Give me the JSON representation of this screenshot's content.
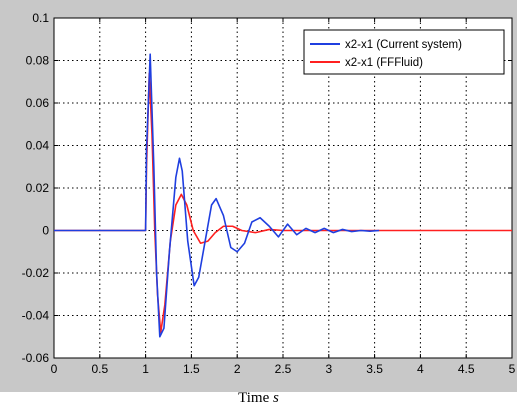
{
  "chart_data": {
    "type": "line",
    "xlabel": "Time",
    "xlabel_unit": "s",
    "xlim": [
      0,
      5
    ],
    "ylim": [
      -0.06,
      0.1
    ],
    "grid": true,
    "legend_position": "top-right",
    "x_ticks": [
      "0",
      "0.5",
      "1",
      "1.5",
      "2",
      "2.5",
      "3",
      "3.5",
      "4",
      "4.5",
      "5"
    ],
    "y_ticks": [
      "-0.06",
      "-0.04",
      "-0.02",
      "0",
      "0.02",
      "0.04",
      "0.06",
      "0.08",
      "0.1"
    ],
    "colors": {
      "current": "#1f3fe0",
      "ffluid": "#ff2020",
      "frame": "#c8c8c8"
    },
    "series": [
      {
        "name": "x2-x1 (Current system)",
        "color": "#1f3fe0",
        "x": [
          0,
          1.0,
          1.01,
          1.05,
          1.09,
          1.12,
          1.155,
          1.2,
          1.26,
          1.33,
          1.37,
          1.4,
          1.46,
          1.53,
          1.58,
          1.65,
          1.72,
          1.77,
          1.85,
          1.93,
          2.0,
          2.08,
          2.16,
          2.25,
          2.35,
          2.45,
          2.55,
          2.65,
          2.75,
          2.85,
          2.95,
          3.05,
          3.15,
          3.25,
          3.35,
          3.45,
          3.55
        ],
        "y": [
          0,
          0,
          0.038,
          0.083,
          0.03,
          -0.02,
          -0.05,
          -0.046,
          -0.01,
          0.025,
          0.034,
          0.028,
          -0.005,
          -0.026,
          -0.022,
          -0.005,
          0.012,
          0.015,
          0.007,
          -0.008,
          -0.01,
          -0.006,
          0.004,
          0.006,
          0.002,
          -0.003,
          0.003,
          -0.002,
          0.001,
          -0.001,
          0.001,
          -0.001,
          0.0005,
          -0.0005,
          0,
          -0.0003,
          0
        ]
      },
      {
        "name": "x2-x1 (FFFluid)",
        "color": "#ff2020",
        "x": [
          0,
          1.0,
          1.01,
          1.04,
          1.07,
          1.1,
          1.13,
          1.165,
          1.21,
          1.27,
          1.33,
          1.39,
          1.45,
          1.52,
          1.6,
          1.68,
          1.76,
          1.85,
          1.95,
          2.05,
          2.2,
          2.35,
          2.5,
          5.0
        ],
        "y": [
          0,
          0,
          0.03,
          0.074,
          0.045,
          0.0,
          -0.03,
          -0.048,
          -0.035,
          -0.005,
          0.012,
          0.017,
          0.012,
          0.0,
          -0.006,
          -0.005,
          -0.001,
          0.002,
          0.002,
          0.0,
          -0.001,
          0.0005,
          0,
          0
        ]
      }
    ]
  }
}
